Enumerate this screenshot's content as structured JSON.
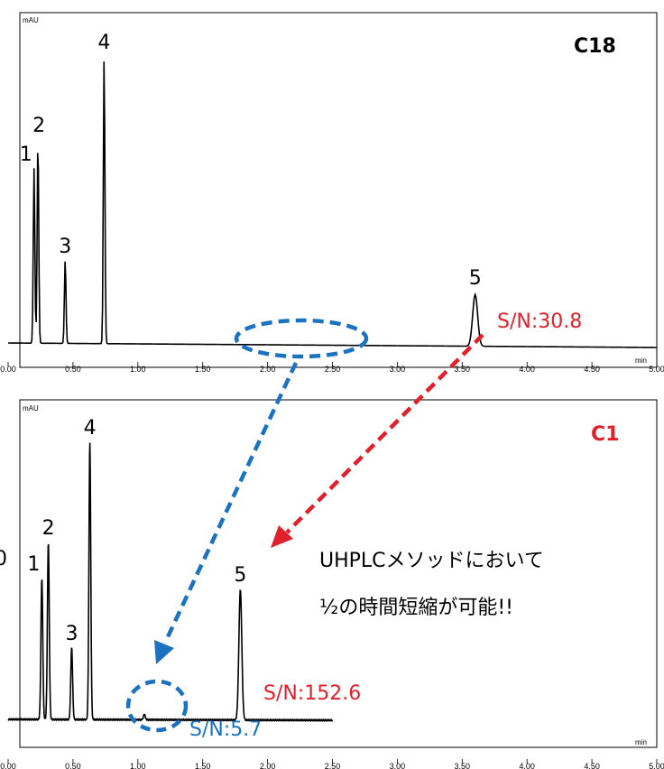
{
  "colors": {
    "trace": "#000000",
    "red": "#e0202a",
    "blue": "#1b72c0",
    "c18_label": "#000000",
    "c1_label": "#e0202a"
  },
  "side_mark": "0",
  "message": {
    "line1": "UHPLCメソッドにおいて",
    "line2": "½の時間短縮が可能!!"
  },
  "chart_data": [
    {
      "type": "line",
      "column": "C18",
      "ylabel": "mAU",
      "xlabel": "min",
      "xlim": [
        0,
        5
      ],
      "xticks": [
        "0.00",
        "0.50",
        "1.00",
        "1.50",
        "2.00",
        "2.50",
        "3.00",
        "3.50",
        "4.00",
        "4.50",
        "5.00"
      ],
      "peaks": [
        {
          "label": "1",
          "rt": 0.2,
          "height": 0.61
        },
        {
          "label": "2",
          "rt": 0.23,
          "height": 0.71
        },
        {
          "label": "3",
          "rt": 0.44,
          "height": 0.29
        },
        {
          "label": "4",
          "rt": 0.74,
          "height": 1.0
        },
        {
          "label": "5",
          "rt": 3.6,
          "height": 0.18
        }
      ],
      "sn_annotations": [
        {
          "text": "S/N:30.8",
          "color": "red"
        }
      ]
    },
    {
      "type": "line",
      "column": "C1",
      "ylabel": "mAU",
      "xlabel": "min",
      "xlim": [
        0,
        5
      ],
      "xticks": [
        "0.00",
        "0.50",
        "1.00",
        "1.50",
        "2.00",
        "2.50",
        "3.00",
        "3.50",
        "4.00",
        "4.50",
        "5.00"
      ],
      "peaks": [
        {
          "label": "1",
          "rt": 0.26,
          "height": 0.51
        },
        {
          "label": "2",
          "rt": 0.31,
          "height": 0.64
        },
        {
          "label": "3",
          "rt": 0.49,
          "height": 0.26
        },
        {
          "label": "4",
          "rt": 0.63,
          "height": 1.0
        },
        {
          "label": "5",
          "rt": 1.79,
          "height": 0.47
        }
      ],
      "minor_peak": {
        "rt": 1.05,
        "height": 0.02
      },
      "sn_annotations": [
        {
          "text": "S/N:152.6",
          "color": "red"
        },
        {
          "text": "S/N:5.7",
          "color": "blue"
        }
      ]
    }
  ]
}
